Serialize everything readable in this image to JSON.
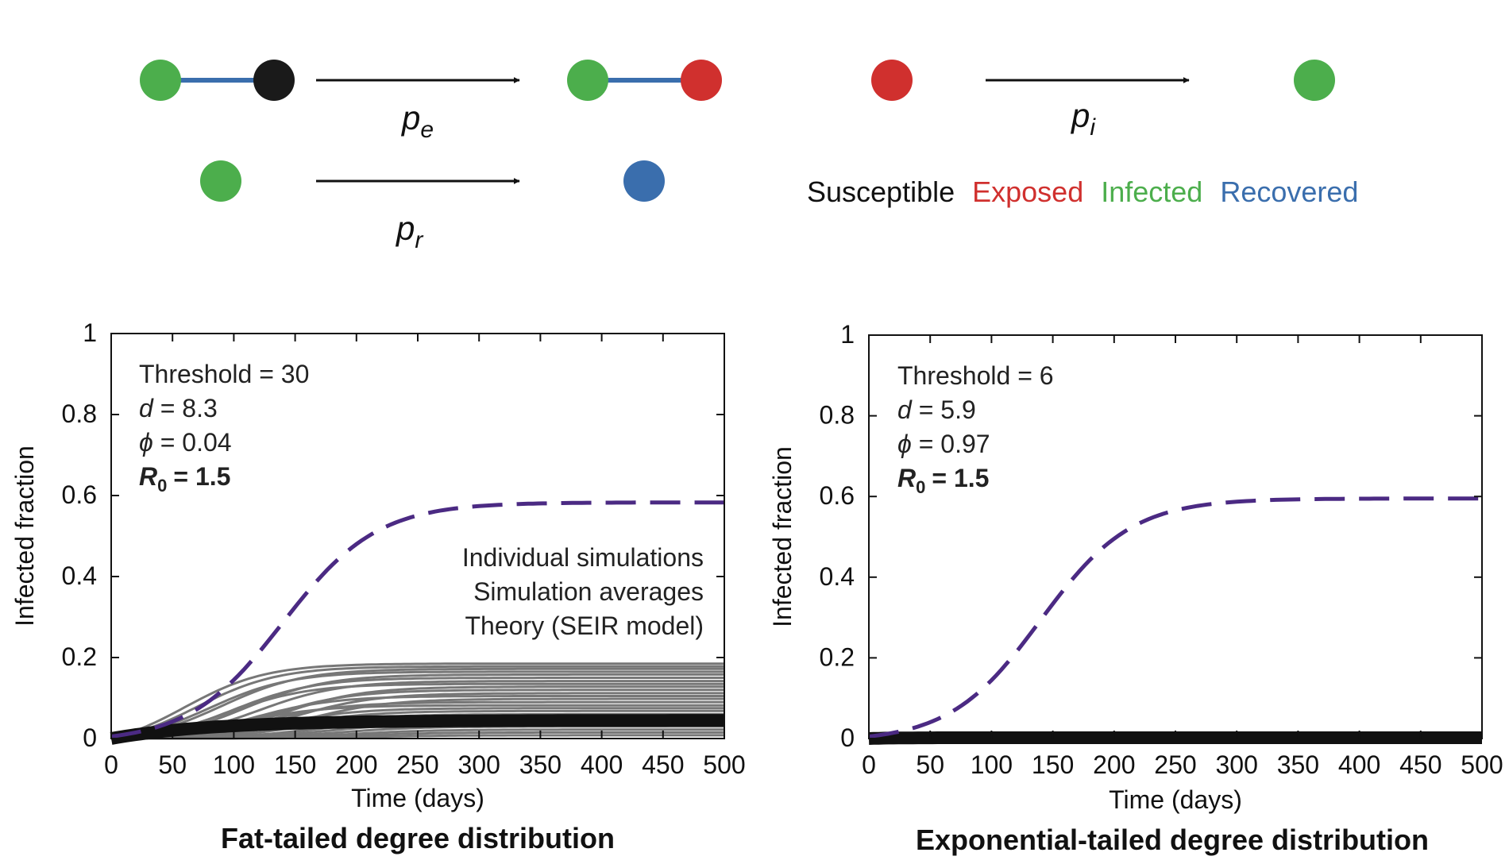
{
  "diagram": {
    "labels": {
      "pe": {
        "base": "p",
        "sub": "e"
      },
      "pi": {
        "base": "p",
        "sub": "i"
      },
      "pr": {
        "base": "p",
        "sub": "r"
      }
    },
    "legend": [
      {
        "label": "Susceptible",
        "color": "#111111"
      },
      {
        "label": "Exposed",
        "color": "#d0302e"
      },
      {
        "label": "Infected",
        "color": "#4cae4c"
      },
      {
        "label": "Recovered",
        "color": "#3a6ead"
      }
    ],
    "colors": {
      "susceptible": "#1a1a1a",
      "exposed": "#d0302e",
      "infected": "#4cae4c",
      "recovered": "#3a6ead",
      "edge": "#3a6ead",
      "arrow": "#111111"
    }
  },
  "chart_data": [
    {
      "type": "line",
      "title": "Fat-tailed degree distribution",
      "xlabel": "Time (days)",
      "ylabel": "Infected fraction",
      "xlim": [
        0,
        500
      ],
      "ylim": [
        0,
        1
      ],
      "xticks": [
        0,
        50,
        100,
        150,
        200,
        250,
        300,
        350,
        400,
        450,
        500
      ],
      "yticks": [
        0,
        0.2,
        0.4,
        0.6,
        0.8,
        1
      ],
      "ytick_labels": [
        "0",
        "0.2",
        "0.4",
        "0.6",
        "0.8",
        "1"
      ],
      "grid": false,
      "annotations": [
        {
          "label": "Threshold",
          "value": "30"
        },
        {
          "label": "d",
          "value": "8.3"
        },
        {
          "label": "ϕ",
          "value": "0.04"
        }
      ],
      "r0": {
        "base": "R",
        "sub": "0",
        "value": "= 1.5"
      },
      "legend_entries": [
        {
          "label": "Individual simulations",
          "color": "#777777"
        },
        {
          "label": "Simulation averages",
          "color": "#111111"
        },
        {
          "label": "Theory (SEIR model)",
          "color": "#4b2a83"
        }
      ],
      "legend_position": "right",
      "theory": {
        "name": "Theory (SEIR model)",
        "color": "#4b2a83",
        "plateau": 0.583,
        "midpoint": 140,
        "rate": 0.026,
        "y0": 0.005
      },
      "average": {
        "name": "Simulation averages",
        "color": "#111111",
        "plateau": 0.045,
        "rate": 0.012,
        "y0": 0.0
      },
      "individual": {
        "name": "Individual simulations",
        "color": "#777777",
        "plateaus": [
          0.185,
          0.178,
          0.172,
          0.165,
          0.158,
          0.15,
          0.142,
          0.135,
          0.128,
          0.12,
          0.112,
          0.105,
          0.098,
          0.09,
          0.082,
          0.075,
          0.068,
          0.06,
          0.052,
          0.045,
          0.038,
          0.03,
          0.022,
          0.015,
          0.008
        ],
        "midpoints": [
          60,
          70,
          90,
          80,
          110,
          100,
          120,
          95,
          140,
          130,
          150,
          115,
          160,
          125,
          105,
          135,
          145,
          155,
          170,
          165,
          175,
          185,
          195,
          200,
          210
        ],
        "rate": 0.03
      }
    },
    {
      "type": "line",
      "title": "Exponential-tailed degree distribution",
      "xlabel": "Time (days)",
      "ylabel": "Infected fraction",
      "xlim": [
        0,
        500
      ],
      "ylim": [
        0,
        1
      ],
      "xticks": [
        0,
        50,
        100,
        150,
        200,
        250,
        300,
        350,
        400,
        450,
        500
      ],
      "yticks": [
        0,
        0.2,
        0.4,
        0.6,
        0.8,
        1
      ],
      "ytick_labels": [
        "0",
        "0.2",
        "0.4",
        "0.6",
        "0.8",
        "1"
      ],
      "grid": false,
      "annotations": [
        {
          "label": "Threshold",
          "value": "6"
        },
        {
          "label": "d",
          "value": "5.9"
        },
        {
          "label": "ϕ",
          "value": "0.97"
        }
      ],
      "r0": {
        "base": "R",
        "sub": "0",
        "value": "= 1.5"
      },
      "theory": {
        "name": "Theory (SEIR model)",
        "color": "#4b2a83",
        "plateau": 0.595,
        "midpoint": 140,
        "rate": 0.027,
        "y0": 0.005
      },
      "average": {
        "name": "Simulation averages",
        "color": "#111111",
        "plateau": 0.002,
        "rate": 0.05,
        "y0": 0.0
      },
      "individual": {
        "name": "Individual simulations",
        "color": "#777777",
        "plateaus": [],
        "midpoints": [],
        "rate": 0.03
      }
    }
  ]
}
